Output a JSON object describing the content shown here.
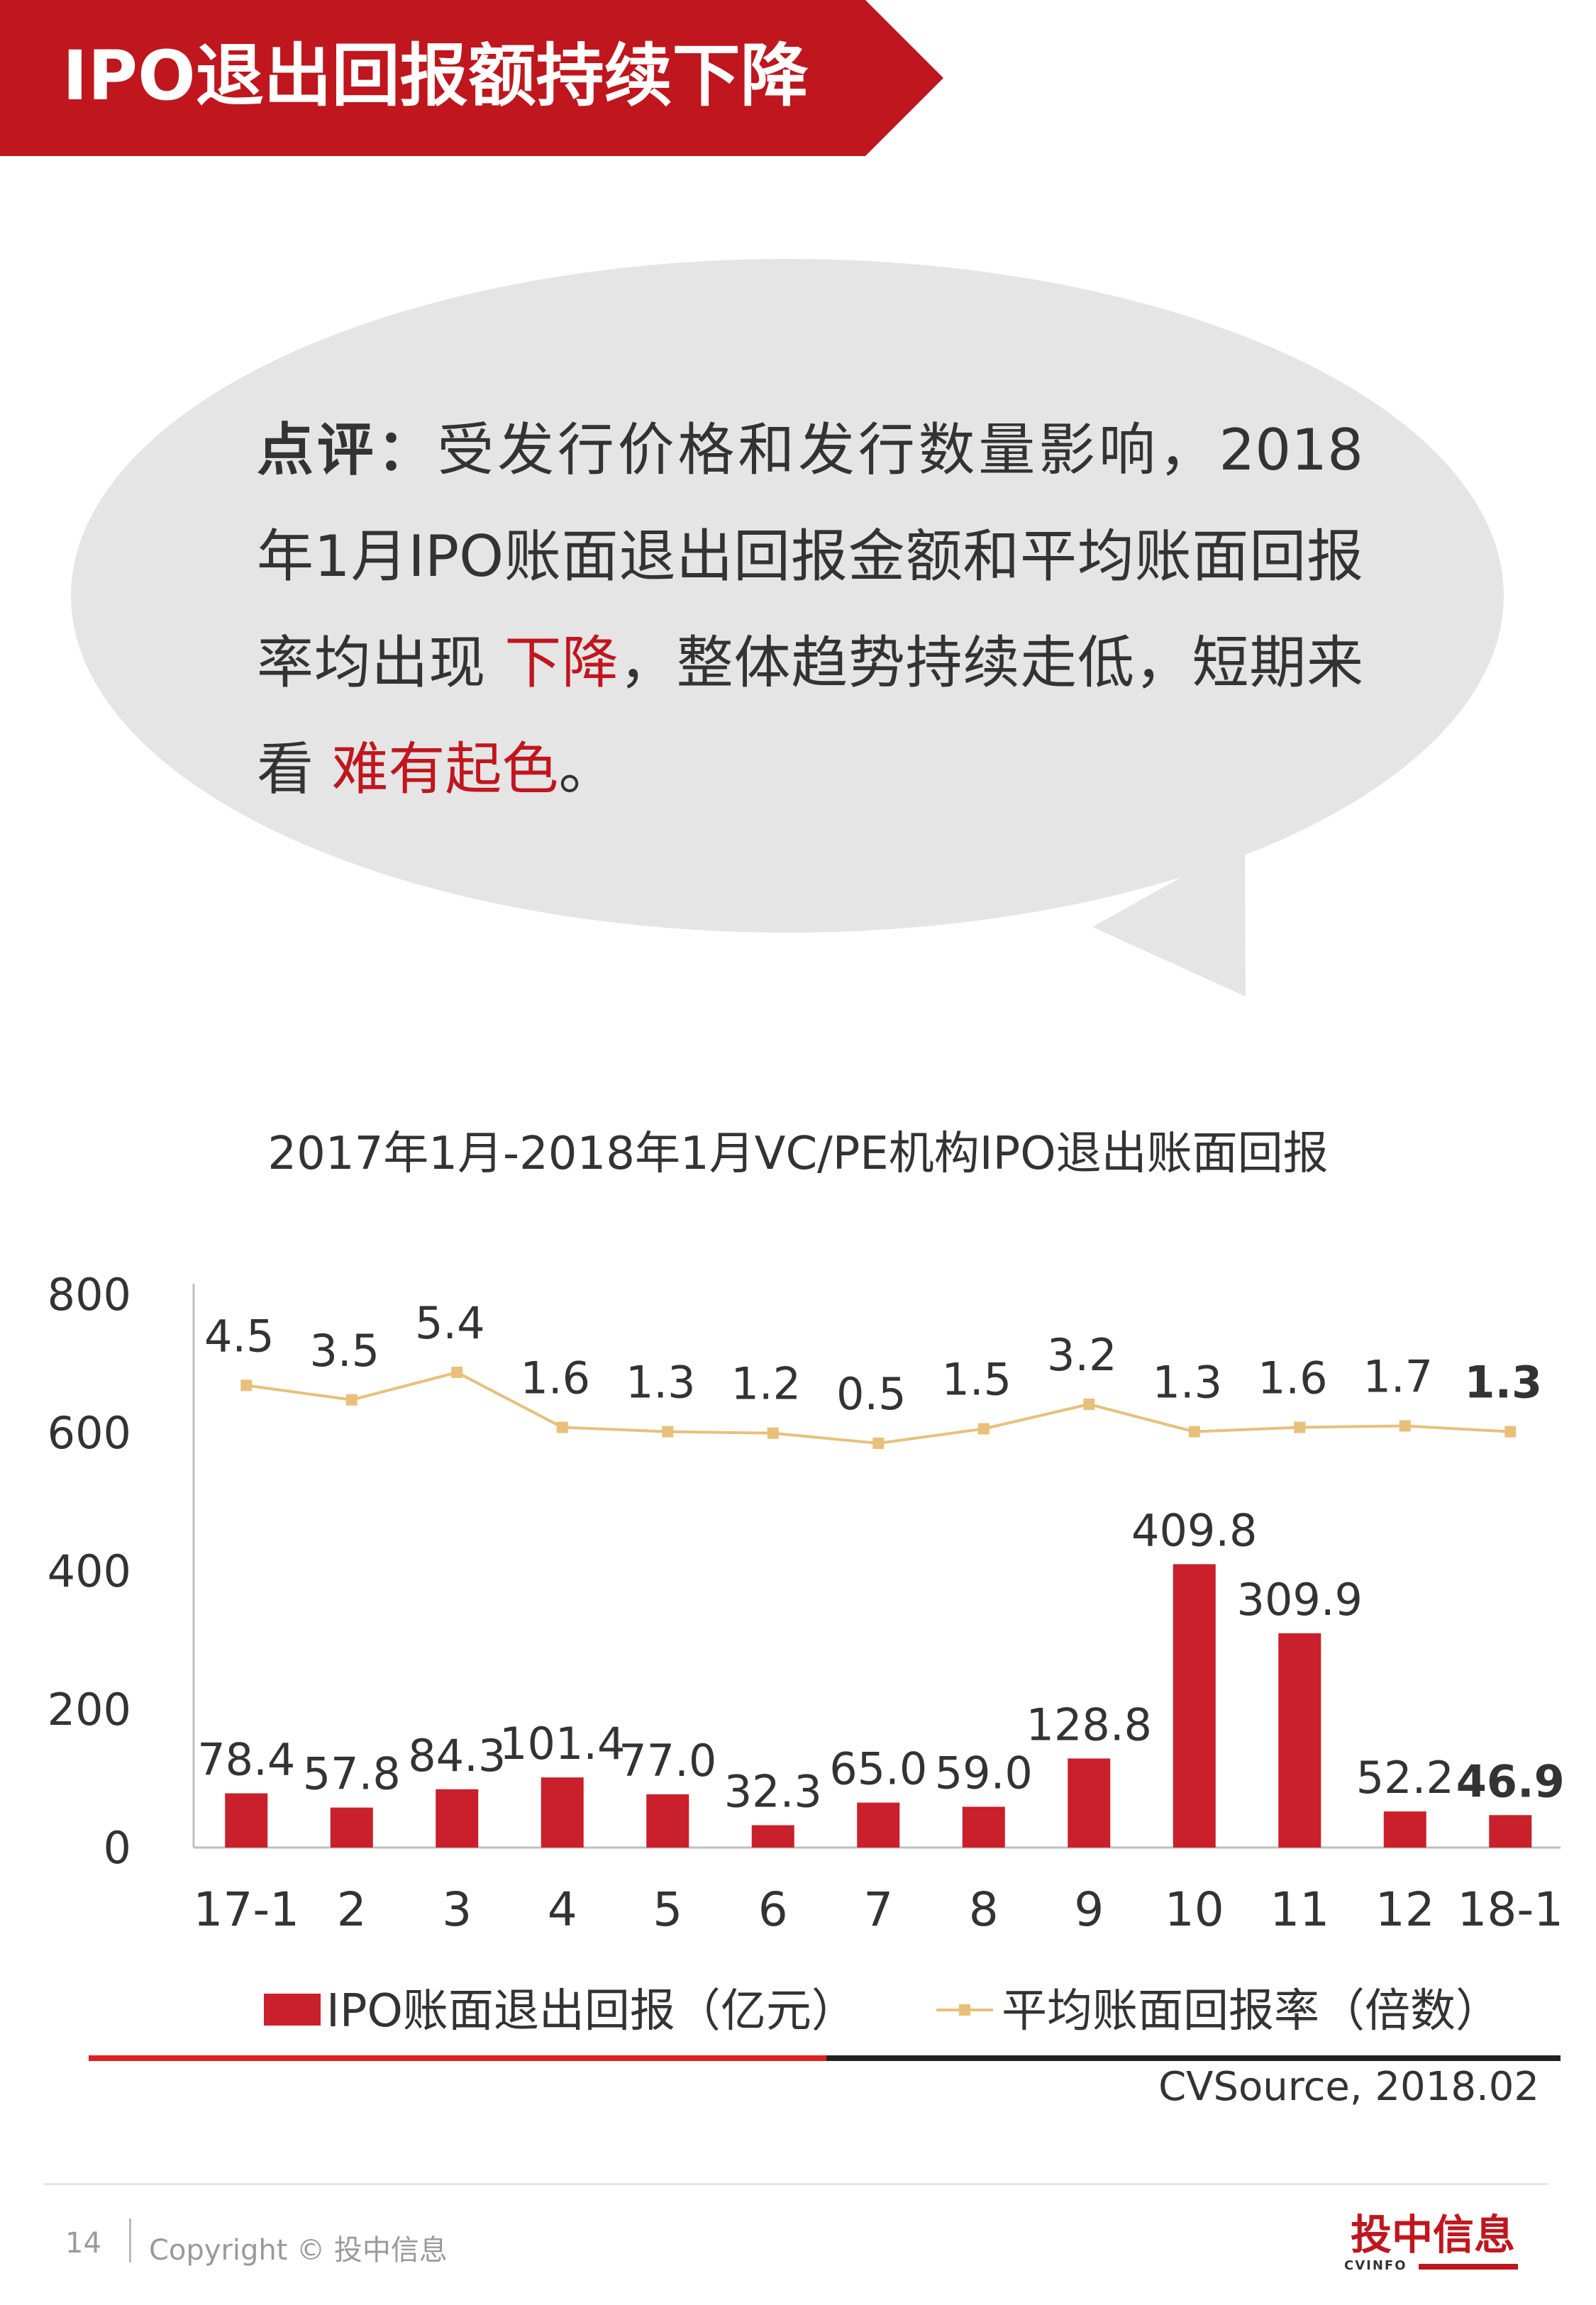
{
  "header": {
    "title": "IPO退出回报额持续下降"
  },
  "comment": {
    "lead": "点评：",
    "text1": "受发行价格和发行数量影响，2018年1月IPO账面退出回报金额和平均账面回报率均出现 ",
    "highlight1": "下降",
    "text2": "，整体趋势持续走低，短期来看 ",
    "highlight2": "难有起色",
    "text3": "。"
  },
  "chart_title": "2017年1月-2018年1月VC/PE机构IPO退出账面回报",
  "chart_data": {
    "type": "bar",
    "categories": [
      "17-1",
      "2",
      "3",
      "4",
      "5",
      "6",
      "7",
      "8",
      "9",
      "10",
      "11",
      "12",
      "18-1"
    ],
    "series": [
      {
        "name": "IPO账面退出回报（亿元）",
        "type": "bar",
        "color": "#c9202b",
        "values": [
          78.4,
          57.8,
          84.3,
          101.4,
          77.0,
          32.3,
          65.0,
          59.0,
          128.8,
          409.8,
          309.9,
          52.2,
          46.9
        ],
        "labels": [
          "78.4",
          "57.8",
          "84.3",
          "101.4",
          "77.0",
          "32.3",
          "65.0",
          "59.0",
          "128.8",
          "409.8",
          "309.9",
          "52.2",
          "46.9"
        ]
      },
      {
        "name": "平均账面回报率（倍数）",
        "type": "line",
        "color": "#e8c07a",
        "values": [
          4.5,
          3.5,
          5.4,
          1.6,
          1.3,
          1.2,
          0.5,
          1.5,
          3.2,
          1.3,
          1.6,
          1.7,
          1.3
        ],
        "labels": [
          "4.5",
          "3.5",
          "5.4",
          "1.6",
          "1.3",
          "1.2",
          "0.5",
          "1.5",
          "3.2",
          "1.3",
          "1.6",
          "1.7",
          "1.3"
        ]
      }
    ],
    "yticks": [
      "800",
      "600",
      "400",
      "200",
      "0"
    ],
    "ylim": [
      0,
      800
    ],
    "grid": false,
    "legend": "bottom",
    "highlight_last": true
  },
  "source": "CVSource, 2018.02",
  "footer": {
    "page": "14",
    "copyright": "Copyright © 投中信息",
    "logo_cn": "投中信息",
    "logo_en": "CVINFO"
  },
  "colors": {
    "brand_red": "#c0161e",
    "bubble_gray": "#e5e5e5",
    "line_gold": "#e8c07a"
  }
}
